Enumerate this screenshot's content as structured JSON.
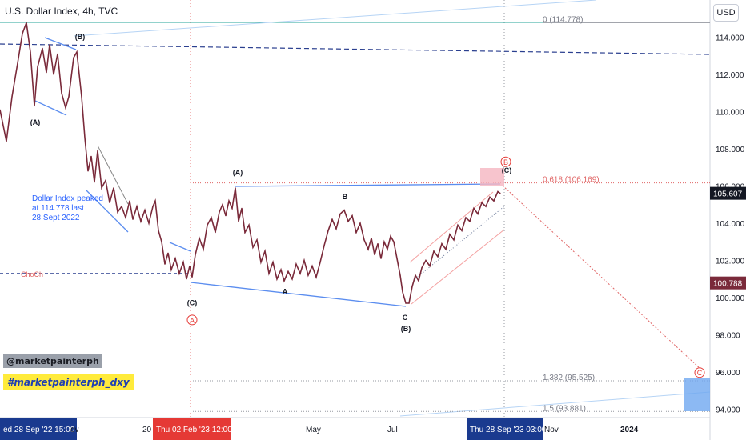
{
  "header": {
    "title": "U.S. Dollar Index, 4h, TVC",
    "currency_button": "USD"
  },
  "overlay": {
    "watermark": "@marketpainterph",
    "hashtag": "#marketpainterph_dxy",
    "note_lines": [
      "Dollar Index peaked",
      "at 114.778 last",
      "28 Sept 2022"
    ]
  },
  "colors": {
    "candle_up": "#26a69a",
    "candle_down": "#ef5350",
    "price_line": "#7a2a3a",
    "blue_line": "#5b8def",
    "red_dotted": "#e06666",
    "navy_dashed": "#2a3f8f",
    "label_blue": "#1f3fb3",
    "label_red": "#e53935"
  },
  "chart_data": {
    "type": "line",
    "title": "U.S. Dollar Index, 4h, TVC",
    "y_axis": {
      "range": [
        93.4,
        115.6
      ],
      "ticks": [
        "114.000",
        "112.000",
        "110.000",
        "108.000",
        "106.000",
        "104.000",
        "102.000",
        "100.000",
        "98.000",
        "96.000",
        "94.000"
      ],
      "tick_values": [
        114,
        112,
        110,
        108,
        106,
        104,
        102,
        100,
        98,
        96,
        94
      ]
    },
    "x_axis": {
      "ticks": [
        {
          "label": "ed 28 Sep '22   15:00",
          "highlight": "navy"
        },
        {
          "label": "ov",
          "highlight": null
        },
        {
          "label": "20",
          "highlight": null
        },
        {
          "label": "Thu 02 Feb '23   12:00",
          "highlight": "red"
        },
        {
          "label": "May",
          "highlight": null
        },
        {
          "label": "Jul",
          "highlight": null
        },
        {
          "label": "Thu 28 Sep '23   03:00",
          "highlight": "navy"
        },
        {
          "label": "Nov",
          "highlight": null
        },
        {
          "label": "2024",
          "highlight": null
        }
      ]
    },
    "series": [
      {
        "name": "",
        "points": [
          [
            0,
            110.1
          ],
          [
            8,
            108.4
          ],
          [
            15,
            110.8
          ],
          [
            22,
            112.6
          ],
          [
            28,
            114.2
          ],
          [
            33,
            114.78
          ],
          [
            38,
            113.2
          ],
          [
            43,
            110.3
          ],
          [
            47,
            112.4
          ],
          [
            53,
            113.4
          ],
          [
            58,
            112.1
          ],
          [
            62,
            113.6
          ],
          [
            67,
            112.0
          ],
          [
            72,
            113.1
          ],
          [
            77,
            111.0
          ],
          [
            82,
            110.2
          ],
          [
            86,
            110.8
          ],
          [
            92,
            112.9
          ],
          [
            96,
            113.2
          ],
          [
            102,
            110.8
          ],
          [
            106,
            108.6
          ],
          [
            110,
            106.8
          ],
          [
            114,
            107.6
          ],
          [
            118,
            106.2
          ],
          [
            122,
            107.9
          ],
          [
            127,
            105.9
          ],
          [
            132,
            106.3
          ],
          [
            137,
            105.1
          ],
          [
            142,
            105.9
          ],
          [
            147,
            104.6
          ],
          [
            152,
            104.9
          ],
          [
            157,
            104.3
          ],
          [
            162,
            105.2
          ],
          [
            166,
            104.2
          ],
          [
            171,
            104.9
          ],
          [
            176,
            104.1
          ],
          [
            181,
            104.7
          ],
          [
            186,
            104.0
          ],
          [
            191,
            104.9
          ],
          [
            194,
            105.2
          ],
          [
            198,
            103.6
          ],
          [
            202,
            103.0
          ],
          [
            206,
            101.8
          ],
          [
            210,
            102.4
          ],
          [
            214,
            101.5
          ],
          [
            219,
            102.1
          ],
          [
            224,
            101.3
          ],
          [
            229,
            101.9
          ],
          [
            233,
            101.0
          ],
          [
            237,
            101.7
          ],
          [
            240,
            101.1
          ],
          [
            244,
            102.3
          ],
          [
            249,
            103.2
          ],
          [
            254,
            102.6
          ],
          [
            259,
            103.9
          ],
          [
            264,
            104.3
          ],
          [
            269,
            103.5
          ],
          [
            274,
            104.6
          ],
          [
            278,
            105.0
          ],
          [
            282,
            104.4
          ],
          [
            286,
            105.2
          ],
          [
            290,
            104.8
          ],
          [
            294,
            105.9
          ],
          [
            298,
            104.1
          ],
          [
            302,
            104.8
          ],
          [
            306,
            103.5
          ],
          [
            311,
            103.9
          ],
          [
            316,
            102.7
          ],
          [
            321,
            103.1
          ],
          [
            326,
            101.9
          ],
          [
            331,
            102.5
          ],
          [
            336,
            101.3
          ],
          [
            341,
            101.9
          ],
          [
            346,
            101.0
          ],
          [
            351,
            101.5
          ],
          [
            355,
            100.9
          ],
          [
            360,
            101.4
          ],
          [
            365,
            101.0
          ],
          [
            370,
            101.8
          ],
          [
            375,
            101.3
          ],
          [
            380,
            102.0
          ],
          [
            385,
            101.2
          ],
          [
            390,
            101.7
          ],
          [
            395,
            101.1
          ],
          [
            400,
            101.9
          ],
          [
            405,
            102.8
          ],
          [
            410,
            103.6
          ],
          [
            415,
            104.2
          ],
          [
            420,
            103.7
          ],
          [
            425,
            104.5
          ],
          [
            430,
            104.7
          ],
          [
            435,
            104.1
          ],
          [
            440,
            104.4
          ],
          [
            445,
            103.5
          ],
          [
            450,
            104.0
          ],
          [
            455,
            103.1
          ],
          [
            460,
            102.6
          ],
          [
            464,
            103.2
          ],
          [
            468,
            102.3
          ],
          [
            472,
            102.9
          ],
          [
            476,
            102.1
          ],
          [
            480,
            103.0
          ],
          [
            484,
            102.6
          ],
          [
            488,
            103.3
          ],
          [
            492,
            103.0
          ],
          [
            496,
            102.1
          ],
          [
            500,
            101.2
          ],
          [
            503,
            100.3
          ],
          [
            507,
            99.7
          ],
          [
            511,
            99.7
          ],
          [
            515,
            100.6
          ],
          [
            519,
            101.2
          ],
          [
            523,
            100.9
          ],
          [
            527,
            101.6
          ],
          [
            532,
            102.0
          ],
          [
            537,
            101.7
          ],
          [
            542,
            102.5
          ],
          [
            547,
            102.2
          ],
          [
            552,
            102.9
          ],
          [
            557,
            102.6
          ],
          [
            562,
            103.4
          ],
          [
            567,
            103.1
          ],
          [
            572,
            103.9
          ],
          [
            577,
            103.6
          ],
          [
            582,
            104.3
          ],
          [
            587,
            104.1
          ],
          [
            592,
            104.8
          ],
          [
            597,
            104.5
          ],
          [
            602,
            105.1
          ],
          [
            607,
            104.9
          ],
          [
            612,
            105.4
          ],
          [
            617,
            105.2
          ],
          [
            622,
            105.7
          ],
          [
            625,
            105.607
          ]
        ]
      }
    ],
    "levels": [
      {
        "label": "0 (114.778)",
        "value": 114.778
      },
      {
        "label": "0.618 (106.169)",
        "value": 106.169
      },
      {
        "label": "1.382 (95.525)",
        "value": 95.525
      },
      {
        "label": "1.5 (93.881)",
        "value": 93.881
      }
    ],
    "price_tags": [
      {
        "label": "105.607",
        "value": 105.607,
        "color": "#131722"
      },
      {
        "label": "100.788",
        "value": 100.788,
        "color": "#7a2a3a"
      }
    ],
    "choch": {
      "label": "ChoCh",
      "value": 101.3
    },
    "wave_labels": [
      {
        "text": "(B)",
        "x": 100,
        "value": 113.9,
        "color": "#131722"
      },
      {
        "text": "(A)",
        "x": 44,
        "value": 109.3,
        "color": "#131722"
      },
      {
        "text": "(A)",
        "x": 297,
        "value": 106.6,
        "color": "#131722"
      },
      {
        "text": "B",
        "x": 431,
        "value": 105.3,
        "color": "#131722"
      },
      {
        "text": "A",
        "x": 356,
        "value": 100.2,
        "color": "#131722"
      },
      {
        "text": "(C)",
        "x": 240,
        "value": 99.6,
        "color": "#131722"
      },
      {
        "text": "C",
        "x": 506,
        "value": 98.8,
        "color": "#131722"
      },
      {
        "text": "(B)",
        "x": 507,
        "value": 98.2,
        "color": "#131722"
      },
      {
        "text": "(C)",
        "x": 633,
        "value": 106.7,
        "color": "#131722"
      }
    ],
    "circle_labels": [
      {
        "text": "A",
        "x": 240,
        "value": 98.8
      },
      {
        "text": "B",
        "x": 632,
        "value": 107.3
      },
      {
        "text": "C",
        "x": 874,
        "value": 95.97
      }
    ]
  }
}
